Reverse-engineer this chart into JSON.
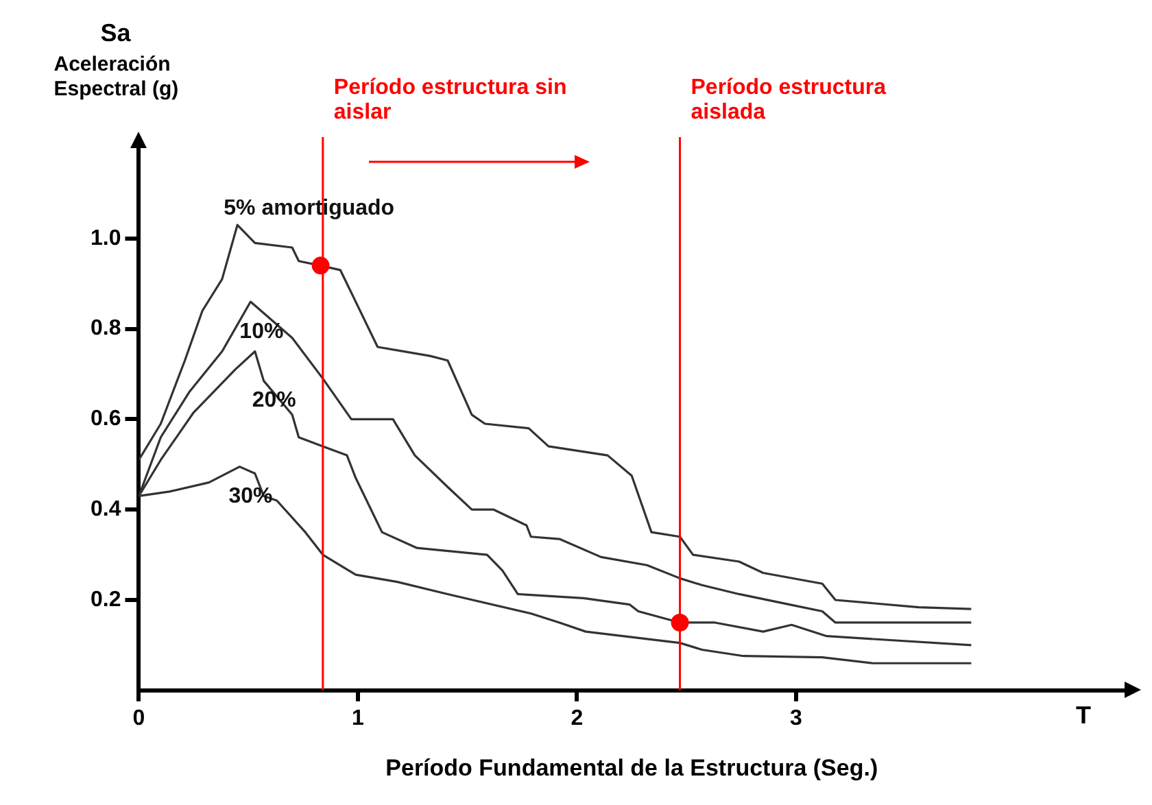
{
  "chart_data": {
    "type": "line",
    "xlabel": "Período Fundamental de la Estructura (Seg.)",
    "ylabel": "Aceleración Espectral (g)",
    "annotations": [
      "Sa",
      "T"
    ],
    "xlim": [
      0,
      4.5
    ],
    "xticks": [
      0,
      1,
      2,
      3
    ],
    "ylim": [
      0,
      1.2
    ],
    "yticks": [
      0.2,
      0.4,
      0.6,
      0.8,
      {
        "value": 1,
        "label": "1.0"
      }
    ],
    "grid": false,
    "legend": false,
    "marker": "none",
    "line_style": "solid",
    "series": [
      {
        "name": "5% amortiguado",
        "color": "#333333",
        "x": [
          0,
          0.1,
          0.21,
          0.29,
          0.38,
          0.45,
          0.53,
          0.7,
          0.73,
          0.83,
          0.92,
          1.09,
          1.33,
          1.41,
          1.52,
          1.58,
          1.78,
          1.87,
          2.14,
          2.25,
          2.34,
          2.47,
          2.53,
          2.74,
          2.85,
          3.12,
          3.18,
          3.56,
          3.8
        ],
        "values": [
          0.51,
          0.59,
          0.73,
          0.84,
          0.91,
          1.03,
          0.99,
          0.98,
          0.95,
          0.94,
          0.93,
          0.76,
          0.74,
          0.73,
          0.61,
          0.59,
          0.58,
          0.54,
          0.52,
          0.475,
          0.35,
          0.34,
          0.3,
          0.285,
          0.26,
          0.236,
          0.2,
          0.184,
          0.18
        ]
      },
      {
        "name": "10%",
        "color": "#333333",
        "x": [
          0,
          0.1,
          0.23,
          0.38,
          0.51,
          0.7,
          0.84,
          0.97,
          1.16,
          1.26,
          1.41,
          1.52,
          1.62,
          1.77,
          1.79,
          1.92,
          2.11,
          2.32,
          2.47,
          2.57,
          2.74,
          2.97,
          3.12,
          3.18,
          3.8
        ],
        "values": [
          0.43,
          0.56,
          0.66,
          0.75,
          0.86,
          0.78,
          0.69,
          0.6,
          0.6,
          0.52,
          0.45,
          0.4,
          0.4,
          0.365,
          0.34,
          0.335,
          0.295,
          0.277,
          0.248,
          0.233,
          0.213,
          0.19,
          0.175,
          0.15,
          0.15
        ]
      },
      {
        "name": "20%",
        "color": "#333333",
        "x": [
          0,
          0.1,
          0.25,
          0.44,
          0.53,
          0.57,
          0.7,
          0.73,
          0.84,
          0.95,
          0.99,
          1.11,
          1.27,
          1.59,
          1.66,
          1.73,
          2.03,
          2.24,
          2.28,
          2.47,
          2.63,
          2.85,
          2.98,
          3.14,
          3.8
        ],
        "values": [
          0.43,
          0.51,
          0.615,
          0.71,
          0.75,
          0.685,
          0.61,
          0.56,
          0.54,
          0.52,
          0.47,
          0.35,
          0.315,
          0.3,
          0.265,
          0.213,
          0.204,
          0.19,
          0.175,
          0.15,
          0.15,
          0.13,
          0.145,
          0.12,
          0.1
        ]
      },
      {
        "name": "30%",
        "color": "#333333",
        "x": [
          0,
          0.14,
          0.32,
          0.46,
          0.53,
          0.57,
          0.63,
          0.76,
          0.84,
          0.99,
          1.18,
          1.41,
          1.79,
          1.92,
          2.04,
          2.47,
          2.57,
          2.76,
          3.12,
          3.35,
          3.8
        ],
        "values": [
          0.43,
          0.44,
          0.46,
          0.495,
          0.48,
          0.43,
          0.42,
          0.35,
          0.3,
          0.256,
          0.24,
          0.213,
          0.17,
          0.15,
          0.13,
          0.105,
          0.09,
          0.076,
          0.073,
          0.06,
          0.06
        ]
      },
      {
        "type": "scatter",
        "color": "#ff0000",
        "marker": "circle",
        "x": [
          0.83,
          2.47
        ],
        "values": [
          0.94,
          0.15
        ]
      }
    ],
    "ref_lines": [
      {
        "axis": "x",
        "value": 0.84,
        "label": "Período estructura sin aislar",
        "color": "#ff0000"
      },
      {
        "axis": "x",
        "value": 2.47,
        "label": "Período estructura aislada",
        "color": "#ff0000"
      }
    ]
  }
}
